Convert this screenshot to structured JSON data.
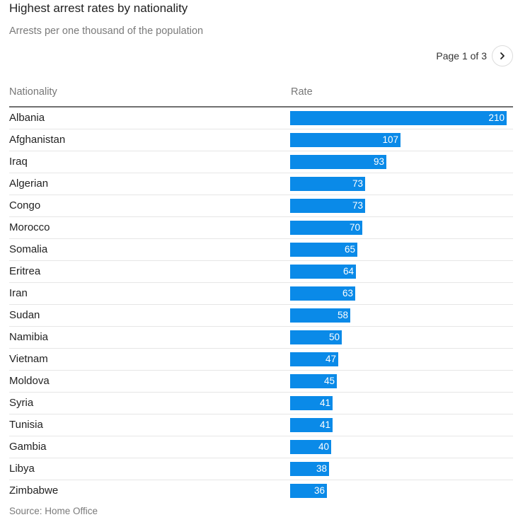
{
  "header": {
    "title": "Highest arrest rates by nationality",
    "subtitle": "Arrests per one thousand of the population"
  },
  "pager": {
    "label": "Page 1 of 3",
    "next_icon": "chevron-right-icon"
  },
  "footer": {
    "source": "Source: Home Office"
  },
  "colors": {
    "bar": "#0a8ae8",
    "bar_label": "#ffffff"
  },
  "chart_data": {
    "type": "bar",
    "orientation": "horizontal",
    "title": "Highest arrest rates by nationality",
    "subtitle": "Arrests per one thousand of the population",
    "columns": [
      "Nationality",
      "Rate"
    ],
    "categories": [
      "Albania",
      "Afghanistan",
      "Iraq",
      "Algerian",
      "Congo",
      "Morocco",
      "Somalia",
      "Eritrea",
      "Iran",
      "Sudan",
      "Namibia",
      "Vietnam",
      "Moldova",
      "Syria",
      "Tunisia",
      "Gambia",
      "Libya",
      "Zimbabwe"
    ],
    "values": [
      210,
      107,
      93,
      73,
      73,
      70,
      65,
      64,
      63,
      58,
      50,
      47,
      45,
      41,
      41,
      40,
      38,
      36
    ],
    "xlim": [
      0,
      210
    ],
    "source": "Source: Home Office",
    "grid": false,
    "legend": "none"
  }
}
